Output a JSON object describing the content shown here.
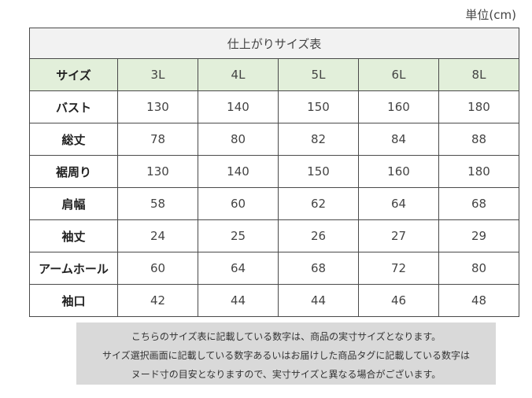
{
  "unit_label": "単位(cm)",
  "table": {
    "title": "仕上がりサイズ表",
    "header_label": "サイズ",
    "sizes": [
      "3L",
      "4L",
      "5L",
      "6L",
      "8L"
    ],
    "rows": [
      {
        "label": "バスト",
        "values": [
          "130",
          "140",
          "150",
          "160",
          "180"
        ]
      },
      {
        "label": "総丈",
        "values": [
          "78",
          "80",
          "82",
          "84",
          "88"
        ]
      },
      {
        "label": "裾周り",
        "values": [
          "130",
          "140",
          "150",
          "160",
          "180"
        ]
      },
      {
        "label": "肩幅",
        "values": [
          "58",
          "60",
          "62",
          "64",
          "68"
        ]
      },
      {
        "label": "袖丈",
        "values": [
          "24",
          "25",
          "26",
          "27",
          "29"
        ]
      },
      {
        "label": "アームホール",
        "values": [
          "60",
          "64",
          "68",
          "72",
          "80"
        ]
      },
      {
        "label": "袖口",
        "values": [
          "42",
          "44",
          "44",
          "46",
          "48"
        ]
      }
    ]
  },
  "note": {
    "lines": [
      "こちらのサイズ表に記載している数字は、商品の実寸サイズとなります。",
      "サイズ選択画面に記載している数字あるいはお届けした商品タグに記載している数字は",
      "ヌード寸の目安となりますので、実寸サイズと異なる場合がございます。"
    ]
  },
  "colors": {
    "header_row_bg": "#e2efda",
    "title_row_bg": "#f2f2f2",
    "note_bg": "#d9d9d9",
    "border": "#4a4a4a"
  }
}
